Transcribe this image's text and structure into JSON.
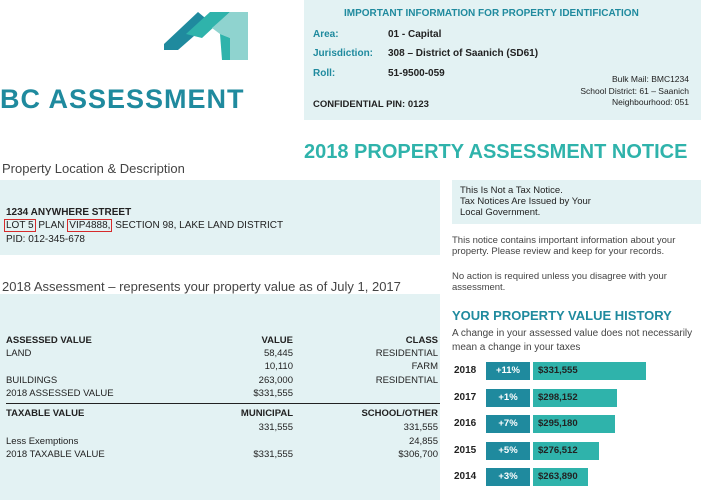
{
  "logo": {
    "text": "BC ASSESSMENT",
    "colors": [
      "#1f8a9e",
      "#2fb3ab",
      "#8fd3cf"
    ]
  },
  "info": {
    "title": "IMPORTANT INFORMATION FOR PROPERTY IDENTIFICATION",
    "area_label": "Area:",
    "area_value": "01 - Capital",
    "jurisdiction_label": "Jurisdiction:",
    "jurisdiction_value": "308 – District of Saanich (SD61)",
    "roll_label": "Roll:",
    "roll_value": "51-9500-059",
    "bulk_mail": "Bulk Mail: BMC1234",
    "school_district": "School District: 61 – Saanich",
    "neighbourhood": "Neighbourhood: 051",
    "confidential_pin": "CONFIDENTIAL PIN: 0123"
  },
  "notice_title": "2018 PROPERTY ASSESSMENT NOTICE",
  "location": {
    "heading": "Property Location & Description",
    "street": "1234 ANYWHERE STREET",
    "lot": "LOT 5",
    "plan_word": "PLAN",
    "plan": "VIP4888,",
    "rest": "SECTION 98, LAKE LAND DISTRICT",
    "pid": "PID: 012-345-678"
  },
  "assessment": {
    "heading": "2018 Assessment – represents your property value as of July 1, 2017",
    "col_assessed": "ASSESSED VALUE",
    "col_value": "VALUE",
    "col_class": "CLASS",
    "rows": [
      {
        "label": "LAND",
        "value": "58,445",
        "class": "RESIDENTIAL"
      },
      {
        "label": "",
        "value": "10,110",
        "class": "FARM"
      },
      {
        "label": "BUILDINGS",
        "value": "263,000",
        "class": "RESIDENTIAL"
      },
      {
        "label": "2018 ASSESSED VALUE",
        "value": "$331,555",
        "class": ""
      }
    ],
    "col_taxable": "TAXABLE VALUE",
    "col_municipal": "MUNICIPAL",
    "col_school": "SCHOOL/OTHER",
    "tax_rows": [
      {
        "label": "",
        "municipal": "331,555",
        "school": "331,555"
      },
      {
        "label": "Less Exemptions",
        "municipal": "",
        "school": "24,855"
      },
      {
        "label": "2018 TAXABLE VALUE",
        "municipal": "$331,555",
        "school": "$306,700"
      }
    ]
  },
  "tax_notice": {
    "line1": "This Is Not a Tax Notice.",
    "line2": "Tax Notices Are Issued by Your",
    "line3": "Local Government."
  },
  "paragraphs": {
    "p1": "This notice contains important information about your property.  Please review and keep for your records.",
    "p2": "No action is required unless you disagree with your assessment."
  },
  "history": {
    "title": "YOUR PROPERTY VALUE HISTORY",
    "subtitle": "A change in your assessed value does not necessarily mean a change in your taxes",
    "rows": [
      {
        "year": "2018",
        "change": "+11%",
        "value": "$331,555",
        "amount": 331555
      },
      {
        "year": "2017",
        "change": "+1%",
        "value": "$298,152",
        "amount": 298152
      },
      {
        "year": "2016",
        "change": "+7%",
        "value": "$295,180",
        "amount": 295180
      },
      {
        "year": "2015",
        "change": "+5%",
        "value": "$276,512",
        "amount": 276512
      },
      {
        "year": "2014",
        "change": "+3%",
        "value": "$263,890",
        "amount": 263890
      }
    ]
  }
}
